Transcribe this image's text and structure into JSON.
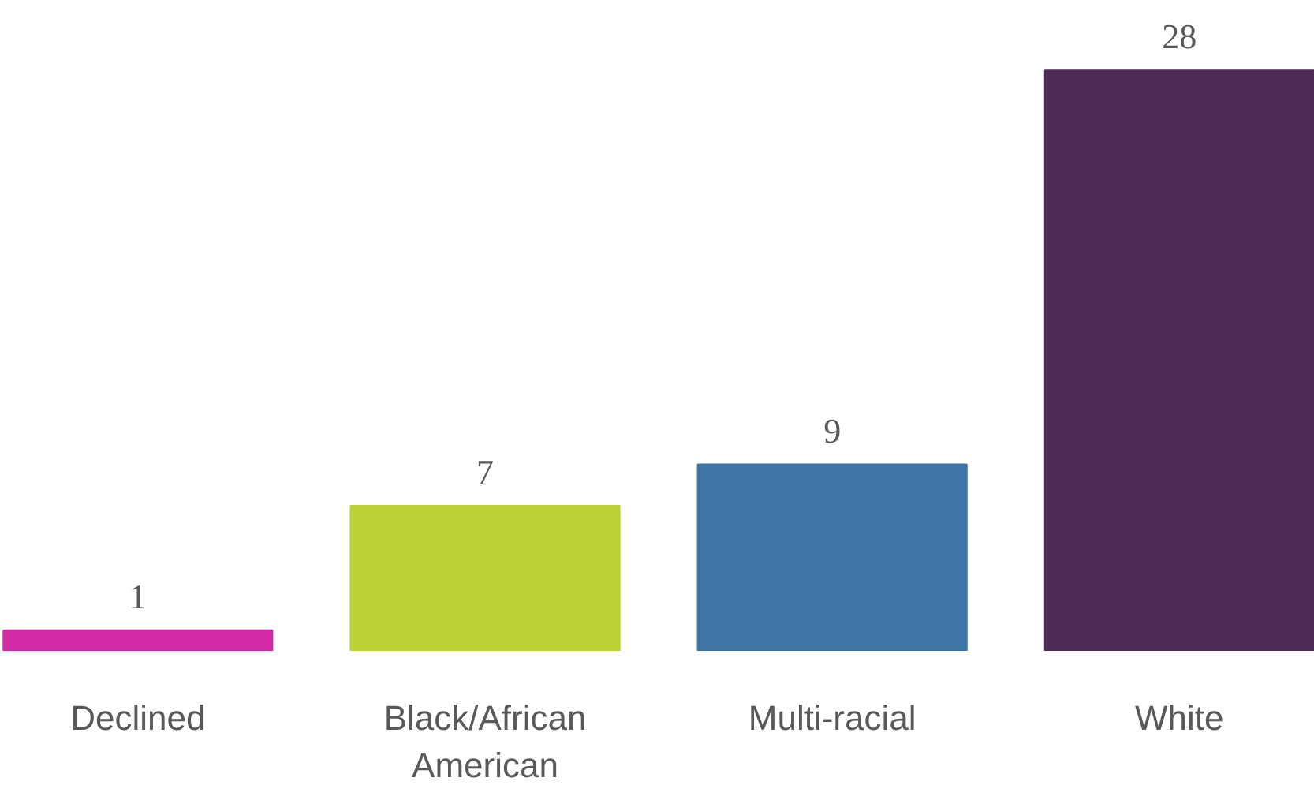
{
  "chart_data": {
    "type": "bar",
    "categories": [
      "Declined",
      "Black/African\nAmerican",
      "Multi-racial",
      "White"
    ],
    "values": [
      1,
      7,
      9,
      28
    ],
    "colors": [
      "#d42aa5",
      "#bcd133",
      "#3f74a7",
      "#4e2b55"
    ],
    "data_labels": true
  }
}
